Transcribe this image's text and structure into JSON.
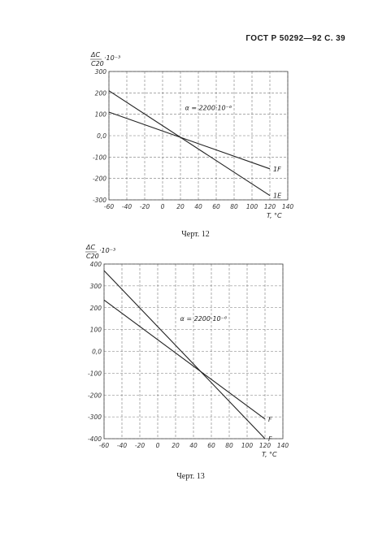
{
  "header": {
    "text": "ГОСТ Р 50292—92 С. 39"
  },
  "figures": [
    {
      "caption": "Черт. 12"
    },
    {
      "caption": "Черт. 13"
    }
  ],
  "chart_data": [
    {
      "type": "line",
      "ylabel_top": "ΔC",
      "ylabel_bottom": "C20",
      "yunit": "·10⁻³",
      "xlabel": "T, °C",
      "annotation": "α = 2200·10⁻⁶",
      "xticks": [
        "-60",
        "-40",
        "-20",
        "0",
        "20",
        "40",
        "60",
        "80",
        "100",
        "120",
        "140"
      ],
      "yticks": [
        "300",
        "200",
        "100",
        "0,0",
        "-100",
        "-200",
        "-300"
      ],
      "xlim": [
        -60,
        140
      ],
      "ylim": [
        -300,
        300
      ],
      "series": [
        {
          "name": "1F",
          "x": [
            -60,
            120
          ],
          "y": [
            110,
            -155
          ]
        },
        {
          "name": "1E",
          "x": [
            -60,
            120
          ],
          "y": [
            210,
            -280
          ]
        }
      ]
    },
    {
      "type": "line",
      "ylabel_top": "ΔC",
      "ylabel_bottom": "C20",
      "yunit": "·10⁻³",
      "xlabel": "T, °C",
      "annotation": "α = 2200·10⁻⁶",
      "xticks": [
        "-60",
        "-40",
        "-20",
        "0",
        "20",
        "40",
        "60",
        "80",
        "100",
        "120",
        "140"
      ],
      "yticks": [
        "400",
        "300",
        "200",
        "100",
        "0,0",
        "-100",
        "-200",
        "-300",
        "-400"
      ],
      "xlim": [
        -60,
        140
      ],
      "ylim": [
        -400,
        400
      ],
      "series": [
        {
          "name": "F",
          "x": [
            -60,
            120
          ],
          "y": [
            235,
            -310
          ]
        },
        {
          "name": "F",
          "x": [
            -60,
            120
          ],
          "y": [
            370,
            -400
          ]
        }
      ]
    }
  ]
}
